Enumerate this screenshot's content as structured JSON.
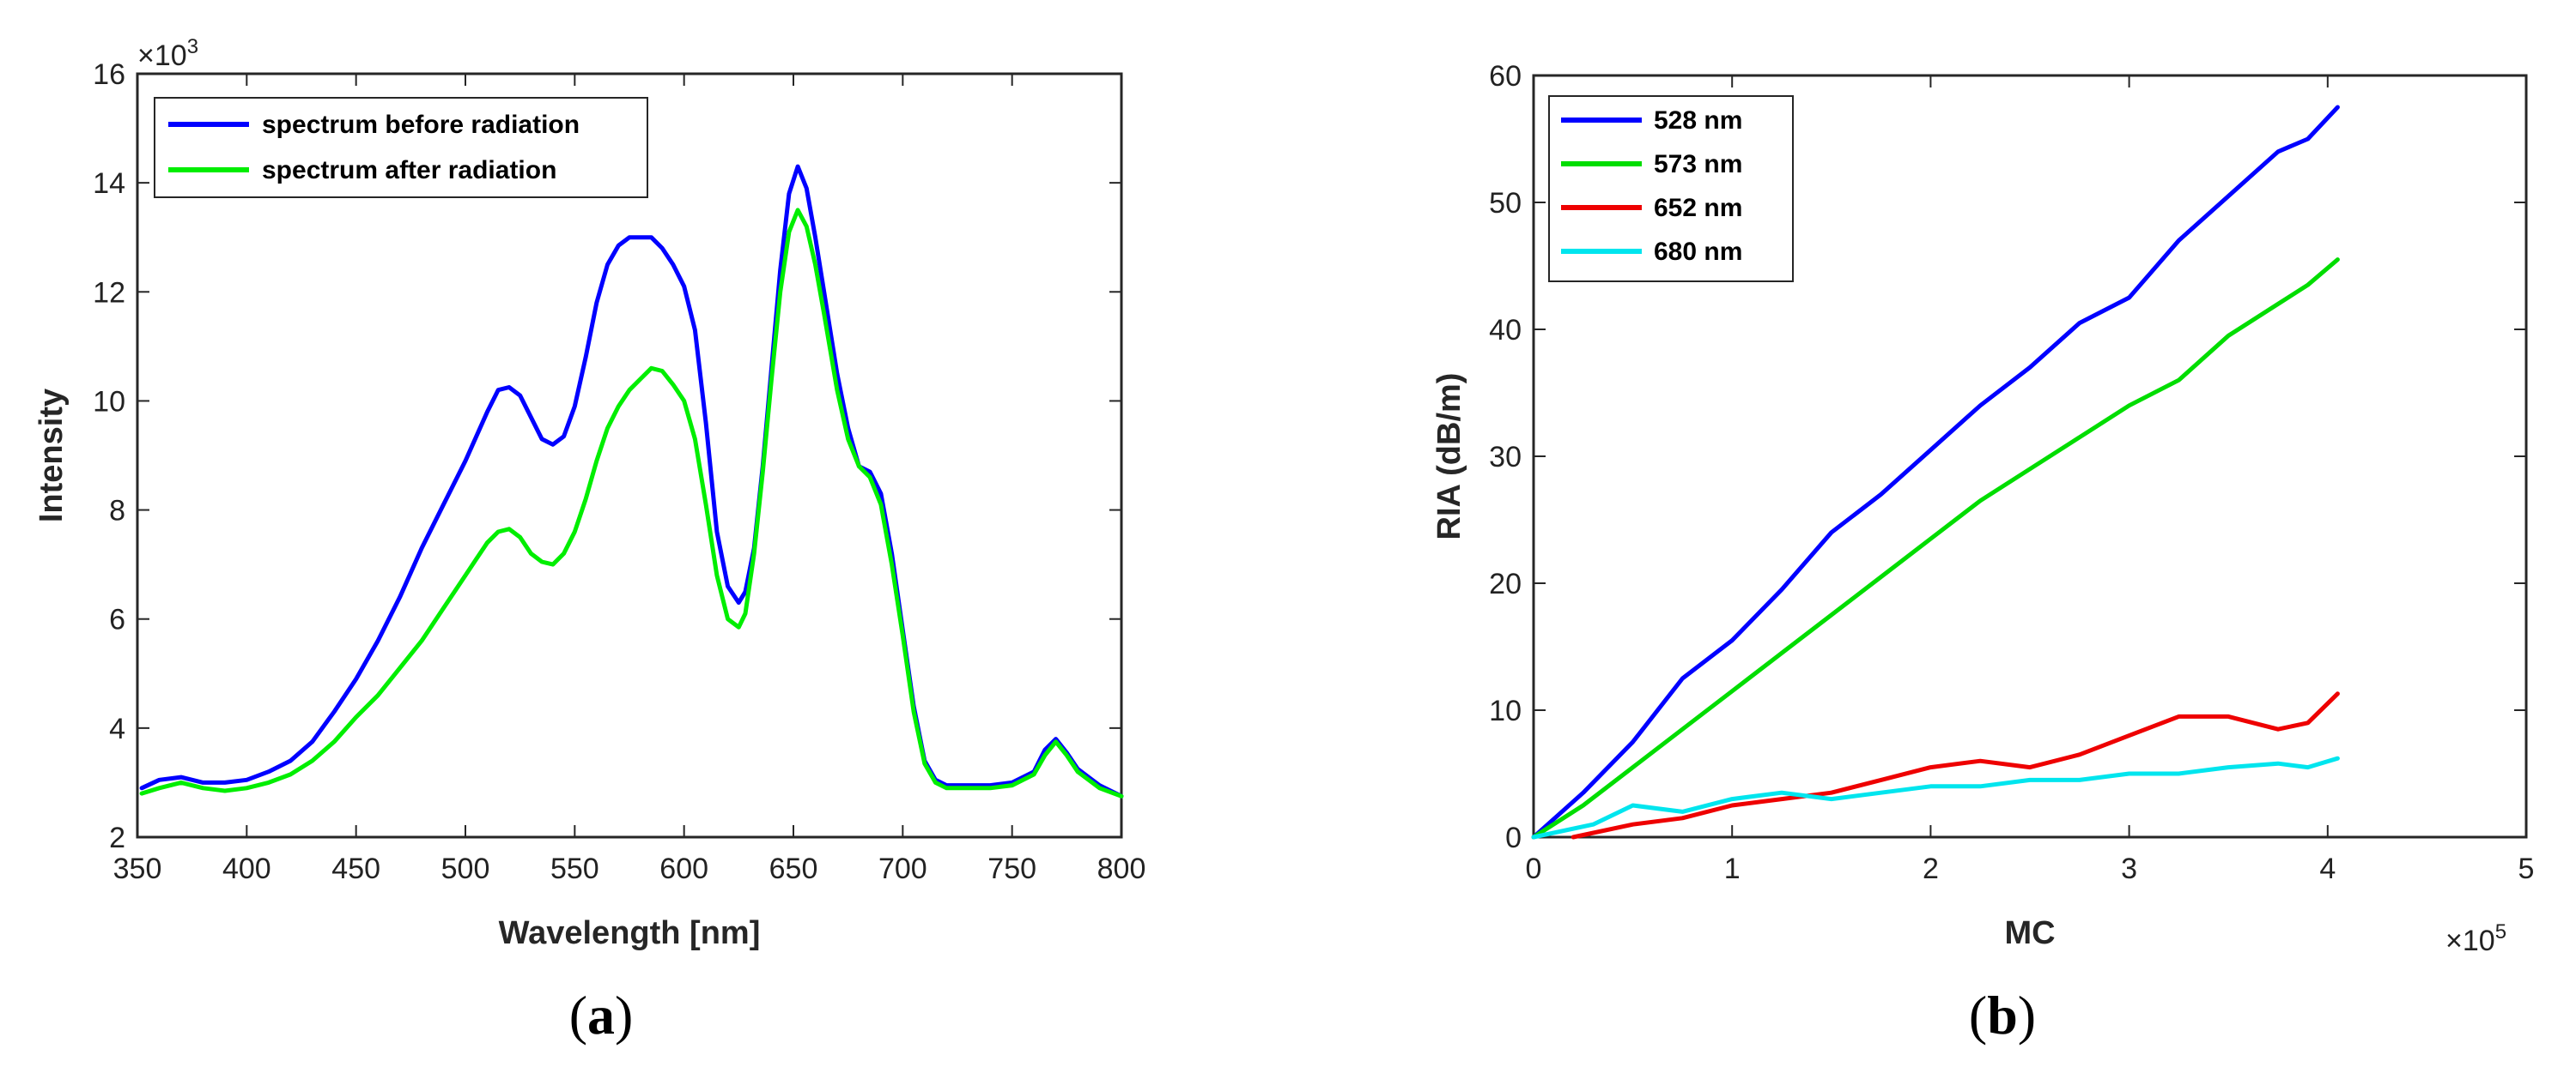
{
  "chart_data": [
    {
      "id": "a",
      "type": "line",
      "caption_open": "(",
      "caption_letter": "a",
      "caption_close": ")",
      "xlabel": "Wavelength [nm]",
      "ylabel": "Intensity",
      "xlim": [
        350,
        800
      ],
      "ylim": [
        2,
        16
      ],
      "xticks": [
        350,
        400,
        450,
        500,
        550,
        600,
        650,
        700,
        750,
        800
      ],
      "yticks": [
        2,
        4,
        6,
        8,
        10,
        12,
        14,
        16
      ],
      "y_multiplier_base": "×10",
      "y_multiplier_exp": "3",
      "legend_position": "top-left",
      "series": [
        {
          "name": "spectrum before radiation",
          "color": "#0000ff",
          "points": [
            [
              352,
              2.9
            ],
            [
              360,
              3.05
            ],
            [
              370,
              3.1
            ],
            [
              380,
              3.0
            ],
            [
              390,
              3.0
            ],
            [
              400,
              3.05
            ],
            [
              410,
              3.2
            ],
            [
              420,
              3.4
            ],
            [
              430,
              3.75
            ],
            [
              440,
              4.3
            ],
            [
              450,
              4.9
            ],
            [
              460,
              5.6
            ],
            [
              470,
              6.4
            ],
            [
              480,
              7.3
            ],
            [
              490,
              8.1
            ],
            [
              500,
              8.9
            ],
            [
              510,
              9.8
            ],
            [
              515,
              10.2
            ],
            [
              520,
              10.25
            ],
            [
              525,
              10.1
            ],
            [
              530,
              9.7
            ],
            [
              535,
              9.3
            ],
            [
              540,
              9.2
            ],
            [
              545,
              9.35
            ],
            [
              550,
              9.9
            ],
            [
              555,
              10.8
            ],
            [
              560,
              11.8
            ],
            [
              565,
              12.5
            ],
            [
              570,
              12.85
            ],
            [
              575,
              13.0
            ],
            [
              580,
              13.0
            ],
            [
              585,
              13.0
            ],
            [
              590,
              12.8
            ],
            [
              595,
              12.5
            ],
            [
              600,
              12.1
            ],
            [
              605,
              11.3
            ],
            [
              610,
              9.6
            ],
            [
              615,
              7.6
            ],
            [
              620,
              6.6
            ],
            [
              625,
              6.3
            ],
            [
              628,
              6.5
            ],
            [
              632,
              7.3
            ],
            [
              636,
              8.8
            ],
            [
              640,
              10.6
            ],
            [
              644,
              12.4
            ],
            [
              648,
              13.8
            ],
            [
              652,
              14.3
            ],
            [
              656,
              13.9
            ],
            [
              660,
              13.0
            ],
            [
              664,
              12.0
            ],
            [
              670,
              10.5
            ],
            [
              675,
              9.5
            ],
            [
              680,
              8.8
            ],
            [
              685,
              8.7
            ],
            [
              690,
              8.3
            ],
            [
              695,
              7.2
            ],
            [
              700,
              5.8
            ],
            [
              705,
              4.4
            ],
            [
              710,
              3.4
            ],
            [
              715,
              3.05
            ],
            [
              720,
              2.95
            ],
            [
              730,
              2.95
            ],
            [
              740,
              2.95
            ],
            [
              750,
              3.0
            ],
            [
              760,
              3.2
            ],
            [
              765,
              3.6
            ],
            [
              770,
              3.8
            ],
            [
              775,
              3.55
            ],
            [
              780,
              3.25
            ],
            [
              790,
              2.95
            ],
            [
              800,
              2.75
            ]
          ]
        },
        {
          "name": "spectrum after radiation",
          "color": "#00ee00",
          "points": [
            [
              352,
              2.8
            ],
            [
              360,
              2.9
            ],
            [
              370,
              3.0
            ],
            [
              380,
              2.9
            ],
            [
              390,
              2.85
            ],
            [
              400,
              2.9
            ],
            [
              410,
              3.0
            ],
            [
              420,
              3.15
            ],
            [
              430,
              3.4
            ],
            [
              440,
              3.75
            ],
            [
              450,
              4.2
            ],
            [
              460,
              4.6
            ],
            [
              470,
              5.1
            ],
            [
              480,
              5.6
            ],
            [
              490,
              6.2
            ],
            [
              500,
              6.8
            ],
            [
              505,
              7.1
            ],
            [
              510,
              7.4
            ],
            [
              515,
              7.6
            ],
            [
              520,
              7.65
            ],
            [
              525,
              7.5
            ],
            [
              530,
              7.2
            ],
            [
              535,
              7.05
            ],
            [
              540,
              7.0
            ],
            [
              545,
              7.2
            ],
            [
              550,
              7.6
            ],
            [
              555,
              8.2
            ],
            [
              560,
              8.9
            ],
            [
              565,
              9.5
            ],
            [
              570,
              9.9
            ],
            [
              575,
              10.2
            ],
            [
              580,
              10.4
            ],
            [
              585,
              10.6
            ],
            [
              590,
              10.55
            ],
            [
              595,
              10.3
            ],
            [
              600,
              10.0
            ],
            [
              605,
              9.3
            ],
            [
              610,
              8.1
            ],
            [
              615,
              6.8
            ],
            [
              620,
              6.0
            ],
            [
              625,
              5.85
            ],
            [
              628,
              6.1
            ],
            [
              632,
              7.2
            ],
            [
              636,
              8.7
            ],
            [
              640,
              10.4
            ],
            [
              644,
              12.0
            ],
            [
              648,
              13.1
            ],
            [
              652,
              13.5
            ],
            [
              656,
              13.2
            ],
            [
              660,
              12.5
            ],
            [
              664,
              11.6
            ],
            [
              670,
              10.2
            ],
            [
              675,
              9.3
            ],
            [
              680,
              8.8
            ],
            [
              685,
              8.6
            ],
            [
              690,
              8.1
            ],
            [
              695,
              7.0
            ],
            [
              700,
              5.7
            ],
            [
              705,
              4.3
            ],
            [
              710,
              3.35
            ],
            [
              715,
              3.0
            ],
            [
              720,
              2.9
            ],
            [
              730,
              2.9
            ],
            [
              740,
              2.9
            ],
            [
              750,
              2.95
            ],
            [
              760,
              3.15
            ],
            [
              765,
              3.5
            ],
            [
              770,
              3.75
            ],
            [
              775,
              3.5
            ],
            [
              780,
              3.2
            ],
            [
              790,
              2.9
            ],
            [
              800,
              2.75
            ]
          ]
        }
      ]
    },
    {
      "id": "b",
      "type": "line",
      "caption_open": "(",
      "caption_letter": "b",
      "caption_close": ")",
      "xlabel": "MC",
      "ylabel": "RIA (dB/m)",
      "xlim": [
        0,
        5
      ],
      "ylim": [
        0,
        60
      ],
      "xticks": [
        0,
        1,
        2,
        3,
        4,
        5
      ],
      "yticks": [
        0,
        10,
        20,
        30,
        40,
        50,
        60
      ],
      "x_multiplier_base": "×10",
      "x_multiplier_exp": "5",
      "legend_position": "top-left",
      "series": [
        {
          "name": "528 nm",
          "color": "#0000ff",
          "points": [
            [
              0,
              0
            ],
            [
              0.25,
              3.5
            ],
            [
              0.5,
              7.5
            ],
            [
              0.75,
              12.5
            ],
            [
              1.0,
              15.5
            ],
            [
              1.25,
              19.5
            ],
            [
              1.5,
              24.0
            ],
            [
              1.75,
              27.0
            ],
            [
              2.0,
              30.5
            ],
            [
              2.25,
              34.0
            ],
            [
              2.5,
              37.0
            ],
            [
              2.75,
              40.5
            ],
            [
              3.0,
              42.5
            ],
            [
              3.25,
              47.0
            ],
            [
              3.5,
              50.5
            ],
            [
              3.75,
              54.0
            ],
            [
              3.9,
              55.0
            ],
            [
              4.05,
              57.5
            ]
          ]
        },
        {
          "name": "573 nm",
          "color": "#00dd00",
          "points": [
            [
              0,
              0
            ],
            [
              0.25,
              2.5
            ],
            [
              0.5,
              5.5
            ],
            [
              0.75,
              8.5
            ],
            [
              1.0,
              11.5
            ],
            [
              1.25,
              14.5
            ],
            [
              1.5,
              17.5
            ],
            [
              1.75,
              20.5
            ],
            [
              2.0,
              23.5
            ],
            [
              2.25,
              26.5
            ],
            [
              2.5,
              29.0
            ],
            [
              2.75,
              31.5
            ],
            [
              3.0,
              34.0
            ],
            [
              3.25,
              36.0
            ],
            [
              3.5,
              39.5
            ],
            [
              3.75,
              42.0
            ],
            [
              3.9,
              43.5
            ],
            [
              4.05,
              45.5
            ]
          ]
        },
        {
          "name": "652 nm",
          "color": "#ee0000",
          "points": [
            [
              0.2,
              0
            ],
            [
              0.5,
              1.0
            ],
            [
              0.75,
              1.5
            ],
            [
              1.0,
              2.5
            ],
            [
              1.25,
              3.0
            ],
            [
              1.5,
              3.5
            ],
            [
              1.75,
              4.5
            ],
            [
              2.0,
              5.5
            ],
            [
              2.25,
              6.0
            ],
            [
              2.5,
              5.5
            ],
            [
              2.75,
              6.5
            ],
            [
              3.0,
              8.0
            ],
            [
              3.25,
              9.5
            ],
            [
              3.5,
              9.5
            ],
            [
              3.75,
              8.5
            ],
            [
              3.9,
              9.0
            ],
            [
              4.05,
              11.3
            ]
          ]
        },
        {
          "name": "680 nm",
          "color": "#00e5ee",
          "points": [
            [
              0,
              0
            ],
            [
              0.3,
              1.0
            ],
            [
              0.5,
              2.5
            ],
            [
              0.75,
              2.0
            ],
            [
              1.0,
              3.0
            ],
            [
              1.25,
              3.5
            ],
            [
              1.5,
              3.0
            ],
            [
              1.75,
              3.5
            ],
            [
              2.0,
              4.0
            ],
            [
              2.25,
              4.0
            ],
            [
              2.5,
              4.5
            ],
            [
              2.75,
              4.5
            ],
            [
              3.0,
              5.0
            ],
            [
              3.25,
              5.0
            ],
            [
              3.5,
              5.5
            ],
            [
              3.75,
              5.8
            ],
            [
              3.9,
              5.5
            ],
            [
              4.05,
              6.2
            ]
          ]
        }
      ]
    }
  ]
}
